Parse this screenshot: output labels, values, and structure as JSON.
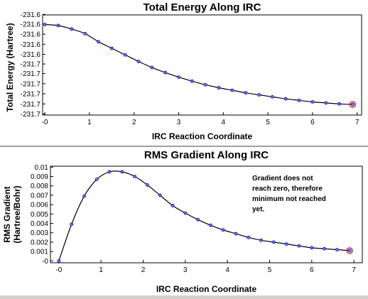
{
  "chart_data": [
    {
      "type": "line",
      "title": "Total Energy Along IRC",
      "xlabel": "IRC Reaction Coordinate",
      "ylabel": "Total Energy (Hartree)",
      "xlim": [
        -0.05,
        7.1
      ],
      "ylim": [
        -231.7005,
        -231.6015
      ],
      "x_ticks": [
        "-0",
        "1",
        "2",
        "3",
        "4",
        "5",
        "6",
        "7"
      ],
      "x_tick_values": [
        0,
        1,
        2,
        3,
        4,
        5,
        6,
        7
      ],
      "y_ticks": [
        "-231.6",
        "-231.6",
        "-231.6",
        "-231.6",
        "-231.6",
        "-231.7",
        "-231.7",
        "-231.7",
        "-231.7",
        "-231.7",
        "-231.7"
      ],
      "y_tick_values": [
        -231.601,
        -231.6105,
        -231.6205,
        -231.6305,
        -231.6405,
        -231.65,
        -231.6595,
        -231.6695,
        -231.6795,
        -231.6895,
        -231.6995
      ],
      "grid": false,
      "series": [
        {
          "color": "#0000cc",
          "x": [
            0.0,
            0.3,
            0.6,
            0.9,
            1.2,
            1.5,
            1.8,
            2.1,
            2.4,
            2.7,
            3.0,
            3.3,
            3.6,
            3.9,
            4.2,
            4.5,
            4.8,
            5.1,
            5.4,
            5.7,
            6.0,
            6.3,
            6.6,
            6.9
          ],
          "y": [
            -231.611,
            -231.612,
            -231.6155,
            -231.62,
            -231.628,
            -231.6345,
            -231.641,
            -231.6475,
            -231.6535,
            -231.6585,
            -231.663,
            -231.667,
            -231.6705,
            -231.6735,
            -231.676,
            -231.6785,
            -231.6805,
            -231.6825,
            -231.6845,
            -231.686,
            -231.6875,
            -231.6885,
            -231.6895,
            -231.69
          ]
        }
      ]
    },
    {
      "type": "line",
      "title": "RMS Gradient Along IRC",
      "xlabel": "IRC Reaction Coordinate",
      "ylabel": [
        "RMS Gradient",
        "(Hartree/Bohr)"
      ],
      "xlim": [
        -0.2,
        7.2
      ],
      "ylim": [
        -0.0002,
        0.0101
      ],
      "x_ticks": [
        "-0",
        "1",
        "2",
        "3",
        "4",
        "5",
        "6",
        "7"
      ],
      "x_tick_values": [
        0,
        1,
        2,
        3,
        4,
        5,
        6,
        7
      ],
      "y_ticks": [
        "-0",
        "0.001",
        "0.002",
        "0.003",
        "0.004",
        "0.005",
        "0.006",
        "0.007",
        "0.008",
        "0.009",
        "0.01"
      ],
      "y_tick_values": [
        0,
        0.001,
        0.002,
        0.003,
        0.004,
        0.005,
        0.006,
        0.007,
        0.008,
        0.009,
        0.01
      ],
      "grid": false,
      "annotation": [
        "Gradient does not",
        "reach zero, therefore",
        "minimum not reached",
        "yet."
      ],
      "series": [
        {
          "color": "#0000cc",
          "x": [
            0.0,
            0.3,
            0.6,
            0.9,
            1.2,
            1.5,
            1.8,
            2.1,
            2.4,
            2.7,
            3.0,
            3.3,
            3.6,
            3.9,
            4.2,
            4.5,
            4.8,
            5.1,
            5.4,
            5.7,
            6.0,
            6.3,
            6.6,
            6.9
          ],
          "y": [
            0.0,
            0.0039,
            0.0069,
            0.0087,
            0.0095,
            0.0095,
            0.009,
            0.0081,
            0.007,
            0.0059,
            0.0051,
            0.0044,
            0.0038,
            0.0033,
            0.0029,
            0.0025,
            0.0022,
            0.002,
            0.0018,
            0.0016,
            0.0014,
            0.0013,
            0.0012,
            0.0011
          ]
        }
      ]
    }
  ]
}
